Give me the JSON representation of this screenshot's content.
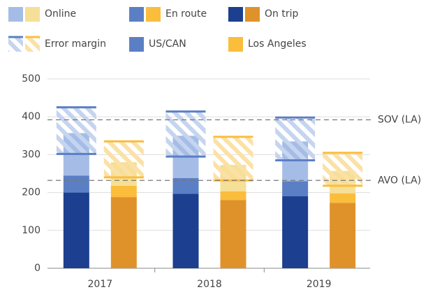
{
  "chart_data": {
    "type": "grouped_stacked_bar",
    "categories": [
      "2017",
      "2018",
      "2019"
    ],
    "ylim": [
      0,
      500
    ],
    "yticks": [
      0,
      100,
      200,
      300,
      400,
      500
    ],
    "grid": true,
    "error_name": "Error margin",
    "groups": [
      {
        "name": "US/CAN",
        "color": "#5b7fc5",
        "error_color": "#c5d4ef",
        "error_edge": "#5b7fc5",
        "series": [
          {
            "name": "On trip",
            "color": "#1c3f8f",
            "values": [
              200,
              197,
              190
            ]
          },
          {
            "name": "En route",
            "color": "#5b7fc5",
            "values": [
              45,
              41,
              40
            ]
          },
          {
            "name": "Online",
            "color": "#a5bde6",
            "values": [
              112,
              112,
              105
            ]
          }
        ],
        "error_low": [
          302,
          295,
          285
        ],
        "error_high": [
          425,
          414,
          398
        ]
      },
      {
        "name": "Los Angeles",
        "color": "#fbbd3c",
        "error_color": "#fbe1a6",
        "error_edge": "#fbbd3c",
        "series": [
          {
            "name": "On trip",
            "color": "#e0922a",
            "values": [
              188,
              180,
              173
            ]
          },
          {
            "name": "En route",
            "color": "#fbbd3c",
            "values": [
              30,
              23,
              25
            ]
          },
          {
            "name": "Online",
            "color": "#f6df96",
            "values": [
              62,
              70,
              59
            ]
          }
        ],
        "error_low": [
          240,
          232,
          218
        ],
        "error_high": [
          335,
          347,
          305
        ]
      }
    ],
    "reference_lines": [
      {
        "label": "SOV (LA)",
        "value": 392
      },
      {
        "label": "AVO (LA)",
        "value": 232
      }
    ]
  }
}
